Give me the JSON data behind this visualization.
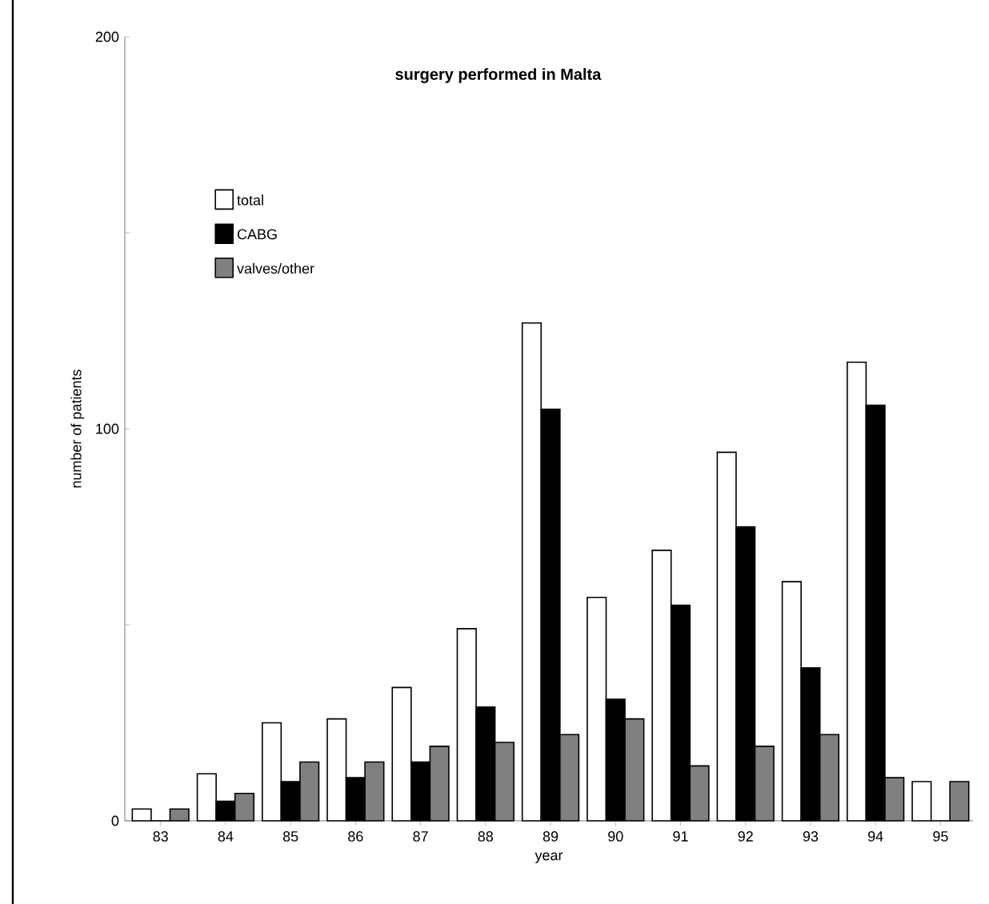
{
  "chart_data": {
    "type": "bar",
    "title": "surgery performed in Malta",
    "xlabel": "year",
    "ylabel": "number of patients",
    "categories": [
      "83",
      "84",
      "85",
      "86",
      "87",
      "88",
      "89",
      "90",
      "91",
      "92",
      "93",
      "94",
      "95"
    ],
    "series": [
      {
        "name": "total",
        "color": "#ffffff",
        "values": [
          3,
          12,
          25,
          26,
          34,
          49,
          127,
          57,
          69,
          94,
          61,
          117,
          10
        ]
      },
      {
        "name": "CABG",
        "color": "#000000",
        "values": [
          0,
          5,
          10,
          11,
          15,
          29,
          105,
          31,
          55,
          75,
          39,
          106,
          0
        ]
      },
      {
        "name": "valves/other",
        "color": "#808080",
        "values": [
          3,
          7,
          15,
          15,
          19,
          20,
          22,
          26,
          14,
          19,
          22,
          11,
          10
        ]
      }
    ],
    "ylim": [
      0,
      200
    ],
    "yticks": [
      0,
      {
        "value": 50,
        "label": null
      },
      100,
      {
        "value": 150,
        "label": null
      },
      200
    ],
    "legend": "top left",
    "grid": false
  }
}
